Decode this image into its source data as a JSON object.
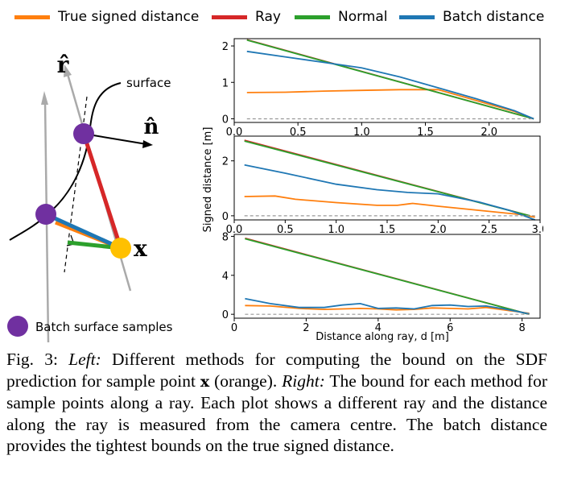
{
  "legend": {
    "items": [
      {
        "label": "True signed distance",
        "color": "#ff7f0e"
      },
      {
        "label": "Ray",
        "color": "#d62728"
      },
      {
        "label": "Normal",
        "color": "#2ca02c"
      },
      {
        "label": "Batch distance",
        "color": "#1f77b4"
      }
    ]
  },
  "diagram": {
    "r_hat_label": "r̂",
    "n_hat_label": "n̂",
    "surface_label": "surface",
    "x_label": "x",
    "batch_legend_label": "Batch surface samples",
    "colors": {
      "purple": "#7030a0",
      "yellow": "#ffc000",
      "gray": "#aaaaaa"
    }
  },
  "chart_data": [
    {
      "type": "line",
      "xlim": [
        0,
        2.4
      ],
      "ylim": [
        -0.1,
        2.2
      ],
      "xticks": [
        0.0,
        0.5,
        1.0,
        1.5,
        2.0
      ],
      "xtick_labels": [
        "0.0",
        "0.5",
        "1.0",
        "1.5",
        "2.0"
      ],
      "yticks": [
        0,
        1,
        2
      ],
      "ytick_labels": [
        "0",
        "1",
        "2"
      ],
      "series": [
        {
          "name": "True signed distance",
          "color": "#ff7f0e",
          "x": [
            0.1,
            0.4,
            0.7,
            1.0,
            1.3,
            1.6,
            1.8,
            2.0,
            2.2,
            2.35
          ],
          "y": [
            0.72,
            0.73,
            0.76,
            0.78,
            0.8,
            0.8,
            0.6,
            0.4,
            0.2,
            0.0
          ]
        },
        {
          "name": "Ray",
          "color": "#d62728",
          "x": [
            0.1,
            2.35
          ],
          "y": [
            2.17,
            0.0
          ]
        },
        {
          "name": "Normal",
          "color": "#2ca02c",
          "x": [
            0.1,
            2.35
          ],
          "y": [
            2.16,
            0.0
          ]
        },
        {
          "name": "Batch distance",
          "color": "#1f77b4",
          "x": [
            0.1,
            0.4,
            0.7,
            1.0,
            1.3,
            1.6,
            1.9,
            2.2,
            2.35
          ],
          "y": [
            1.85,
            1.7,
            1.55,
            1.4,
            1.15,
            0.85,
            0.55,
            0.22,
            0.0
          ]
        },
        {
          "name": "Zero",
          "color": "#999999",
          "dashed": true,
          "x": [
            0.1,
            2.35
          ],
          "y": [
            0,
            0
          ]
        }
      ]
    },
    {
      "type": "line",
      "xlim": [
        0,
        3.0
      ],
      "ylim": [
        -0.15,
        2.9
      ],
      "xticks": [
        0.0,
        0.5,
        1.0,
        1.5,
        2.0,
        2.5,
        3.0
      ],
      "xtick_labels": [
        "0.0",
        "0.5",
        "1.0",
        "1.5",
        "2.0",
        "2.5",
        "3.0"
      ],
      "yticks": [
        0,
        2
      ],
      "ytick_labels": [
        "0",
        "2"
      ],
      "ylabel": "Signed distance [m]",
      "series": [
        {
          "name": "True signed distance",
          "color": "#ff7f0e",
          "x": [
            0.1,
            0.4,
            0.6,
            1.0,
            1.4,
            1.6,
            1.75,
            2.0,
            2.4,
            2.8,
            2.95
          ],
          "y": [
            0.7,
            0.72,
            0.6,
            0.48,
            0.38,
            0.38,
            0.45,
            0.35,
            0.2,
            0.05,
            -0.05
          ]
        },
        {
          "name": "Ray",
          "color": "#d62728",
          "x": [
            0.1,
            2.9
          ],
          "y": [
            2.75,
            0.0
          ]
        },
        {
          "name": "Normal",
          "color": "#2ca02c",
          "x": [
            0.1,
            2.9
          ],
          "y": [
            2.72,
            0.0
          ]
        },
        {
          "name": "Batch distance",
          "color": "#1f77b4",
          "x": [
            0.1,
            0.5,
            1.0,
            1.4,
            1.7,
            2.0,
            2.4,
            2.7,
            2.95
          ],
          "y": [
            1.85,
            1.55,
            1.15,
            0.95,
            0.85,
            0.8,
            0.5,
            0.2,
            -0.15
          ]
        },
        {
          "name": "Zero",
          "color": "#999999",
          "dashed": true,
          "x": [
            0.1,
            2.95
          ],
          "y": [
            0,
            0
          ]
        }
      ]
    },
    {
      "type": "line",
      "xlim": [
        0,
        8.5
      ],
      "ylim": [
        -0.4,
        8.2
      ],
      "xticks": [
        0,
        2,
        4,
        6,
        8
      ],
      "xtick_labels": [
        "0",
        "2",
        "4",
        "6",
        "8"
      ],
      "yticks": [
        0,
        4,
        8
      ],
      "ytick_labels": [
        "0",
        "4",
        "8"
      ],
      "xlabel": "Distance along ray, d [m]",
      "series": [
        {
          "name": "True signed distance",
          "color": "#ff7f0e",
          "x": [
            0.3,
            1.0,
            1.8,
            2.5,
            3.0,
            3.5,
            4.0,
            4.5,
            5.0,
            5.5,
            6.0,
            6.5,
            7.0,
            7.5,
            8.2
          ],
          "y": [
            0.9,
            0.85,
            0.6,
            0.5,
            0.55,
            0.6,
            0.55,
            0.45,
            0.5,
            0.65,
            0.6,
            0.55,
            0.7,
            0.45,
            0.1
          ]
        },
        {
          "name": "Ray",
          "color": "#d62728",
          "x": [
            0.3,
            8.2
          ],
          "y": [
            7.8,
            0.0
          ]
        },
        {
          "name": "Normal",
          "color": "#2ca02c",
          "x": [
            0.3,
            8.2
          ],
          "y": [
            7.75,
            0.0
          ]
        },
        {
          "name": "Batch distance",
          "color": "#1f77b4",
          "x": [
            0.3,
            1.0,
            1.8,
            2.5,
            3.0,
            3.5,
            4.0,
            4.5,
            5.0,
            5.5,
            6.0,
            6.5,
            7.0,
            7.5,
            8.2
          ],
          "y": [
            1.6,
            1.1,
            0.7,
            0.7,
            0.95,
            1.1,
            0.6,
            0.65,
            0.55,
            0.9,
            0.95,
            0.8,
            0.85,
            0.55,
            0.05
          ]
        },
        {
          "name": "Zero",
          "color": "#999999",
          "dashed": true,
          "x": [
            0.3,
            8.2
          ],
          "y": [
            0,
            0
          ]
        }
      ]
    }
  ],
  "caption": {
    "prefix": "Fig. 3: ",
    "left_label": "Left:",
    "text1": " Different methods for computing the bound on the SDF prediction for sample point ",
    "x_symbol": "x",
    "text2": " (orange). ",
    "right_label": "Right:",
    "text3": " The bound for each method for sample points along a ray. Each plot shows a different ray and the distance along the ray is measured from the camera centre. The batch distance provides the tightest bounds on the true signed distance."
  }
}
